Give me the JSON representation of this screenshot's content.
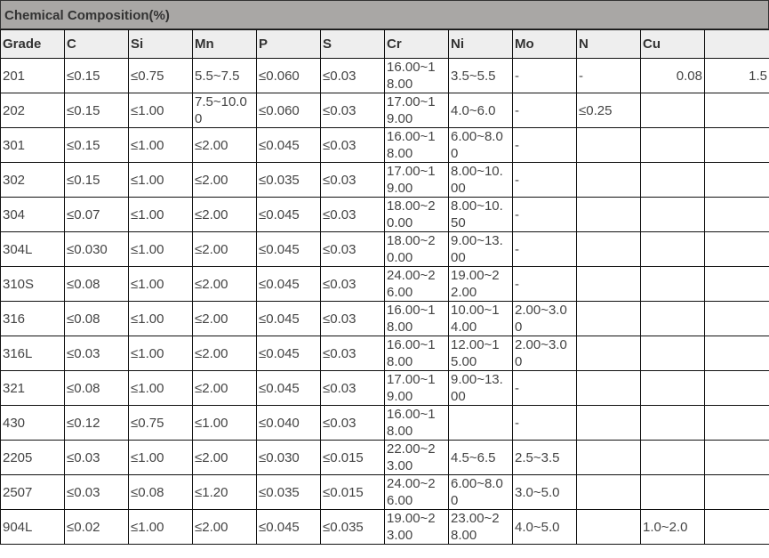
{
  "title": "Chemical Composition(%)",
  "columns": [
    "Grade",
    "C",
    "Si",
    "Mn",
    "P",
    "S",
    "Cr",
    "Ni",
    "Mo",
    "N",
    "Cu",
    ""
  ],
  "rows": [
    [
      "201",
      "≤0.15",
      "≤0.75",
      "5.5~7.5",
      "≤0.060",
      "≤0.03",
      "16.00~18.00",
      "3.5~5.5",
      "-",
      "-",
      "0.08",
      "1.5"
    ],
    [
      "202",
      "≤0.15",
      "≤1.00",
      "7.5~10.00",
      "≤0.060",
      "≤0.03",
      "17.00~19.00",
      "4.0~6.0",
      "-",
      "≤0.25",
      "",
      ""
    ],
    [
      "301",
      "≤0.15",
      "≤1.00",
      "≤2.00",
      "≤0.045",
      "≤0.03",
      "16.00~18.00",
      "6.00~8.00",
      "-",
      "",
      "",
      ""
    ],
    [
      "302",
      "≤0.15",
      "≤1.00",
      "≤2.00",
      "≤0.035",
      "≤0.03",
      "17.00~19.00",
      "8.00~10.00",
      "-",
      "",
      "",
      ""
    ],
    [
      "304",
      "≤0.07",
      "≤1.00",
      "≤2.00",
      "≤0.045",
      "≤0.03",
      "18.00~20.00",
      "8.00~10.50",
      "-",
      "",
      "",
      ""
    ],
    [
      "304L",
      "≤0.030",
      "≤1.00",
      "≤2.00",
      "≤0.045",
      "≤0.03",
      "18.00~20.00",
      "9.00~13.00",
      "-",
      "",
      "",
      ""
    ],
    [
      "310S",
      "≤0.08",
      "≤1.00",
      "≤2.00",
      "≤0.045",
      "≤0.03",
      "24.00~26.00",
      "19.00~22.00",
      "-",
      "",
      "",
      ""
    ],
    [
      "316",
      "≤0.08",
      "≤1.00",
      "≤2.00",
      "≤0.045",
      "≤0.03",
      "16.00~18.00",
      "10.00~14.00",
      "2.00~3.00",
      "",
      "",
      ""
    ],
    [
      "316L",
      "≤0.03",
      "≤1.00",
      "≤2.00",
      "≤0.045",
      "≤0.03",
      "16.00~18.00",
      "12.00~15.00",
      "2.00~3.00",
      "",
      "",
      ""
    ],
    [
      "321",
      "≤0.08",
      "≤1.00",
      "≤2.00",
      "≤0.045",
      "≤0.03",
      "17.00~19.00",
      "9.00~13.00",
      "-",
      "",
      "",
      ""
    ],
    [
      "430",
      "≤0.12",
      "≤0.75",
      "≤1.00",
      "≤0.040",
      "≤0.03",
      "16.00~18.00",
      "",
      "-",
      "",
      "",
      ""
    ],
    [
      "2205",
      "≤0.03",
      "≤1.00",
      "≤2.00",
      "≤0.030",
      "≤0.015",
      "22.00~23.00",
      "4.5~6.5",
      "2.5~3.5",
      "",
      "",
      ""
    ],
    [
      "2507",
      "≤0.03",
      "≤0.08",
      "≤1.20",
      "≤0.035",
      "≤0.015",
      "24.00~26.00",
      "6.00~8.00",
      "3.0~5.0",
      "",
      "",
      ""
    ],
    [
      "904L",
      "≤0.02",
      "≤1.00",
      "≤2.00",
      "≤0.045",
      "≤0.035",
      "19.00~23.00",
      "23.00~28.00",
      "4.0~5.0",
      "",
      "1.0~2.0",
      ""
    ]
  ]
}
